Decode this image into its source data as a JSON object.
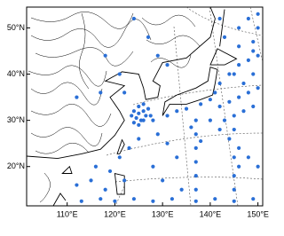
{
  "chart_data": {
    "type": "scatter",
    "color": "#2a6fd6",
    "xlim": [
      101.5,
      151
    ],
    "ylim": [
      11.5,
      54.5
    ],
    "xticks": [
      {
        "value": 110,
        "label": "110°E"
      },
      {
        "value": 120,
        "label": "120°E"
      },
      {
        "value": 130,
        "label": "130°E"
      },
      {
        "value": 140,
        "label": "140°E"
      },
      {
        "value": 150,
        "label": "150°E"
      }
    ],
    "yticks": [
      {
        "value": 20,
        "label": "20°N"
      },
      {
        "value": 30,
        "label": "30°N"
      },
      {
        "value": 40,
        "label": "40°N"
      },
      {
        "value": 50,
        "label": "50°N"
      }
    ],
    "x": [
      124,
      125,
      126,
      124.5,
      125.5,
      126.5,
      127,
      123.5,
      125,
      126,
      124,
      127.5,
      125,
      126,
      128,
      131,
      133,
      135,
      138,
      140,
      141,
      142,
      144,
      146,
      148,
      142,
      144,
      146,
      148,
      150,
      143,
      145,
      147,
      149,
      140,
      142,
      144,
      146,
      148,
      150,
      145,
      147,
      149,
      150,
      149,
      150,
      148,
      150,
      149,
      146,
      137,
      137,
      137,
      137,
      137,
      137,
      137,
      136,
      138,
      145,
      145,
      145,
      145,
      145,
      146,
      113,
      117,
      120,
      124,
      128,
      132,
      141,
      149,
      112,
      115,
      118,
      119,
      116,
      121,
      123,
      125,
      129,
      131,
      133,
      128,
      130,
      134,
      122,
      121,
      118,
      127,
      124,
      112,
      117,
      122,
      129,
      131,
      143,
      142,
      146
    ],
    "y": [
      32,
      31.5,
      32,
      30.5,
      30,
      31,
      32.5,
      31,
      33,
      33.5,
      29.5,
      31,
      29,
      30,
      30,
      31,
      32,
      32.5,
      33.5,
      34.5,
      36,
      38,
      40,
      42,
      43,
      33,
      34,
      35,
      36,
      37,
      30,
      31,
      32,
      33,
      30,
      28,
      26,
      24,
      22,
      20,
      40,
      38,
      40,
      44,
      47,
      50,
      52,
      53,
      45,
      46,
      30,
      27,
      24,
      21,
      18,
      15,
      12.5,
      28.5,
      25.5,
      28,
      22,
      18,
      15,
      12.5,
      20,
      12.5,
      13,
      12.5,
      13,
      12.5,
      13,
      13,
      13,
      16,
      17,
      15,
      19,
      20,
      22,
      24,
      26,
      27,
      25,
      22,
      20,
      17,
      15,
      17,
      40,
      44,
      48,
      52,
      35,
      36,
      36,
      44,
      42,
      48,
      52,
      50
    ]
  }
}
